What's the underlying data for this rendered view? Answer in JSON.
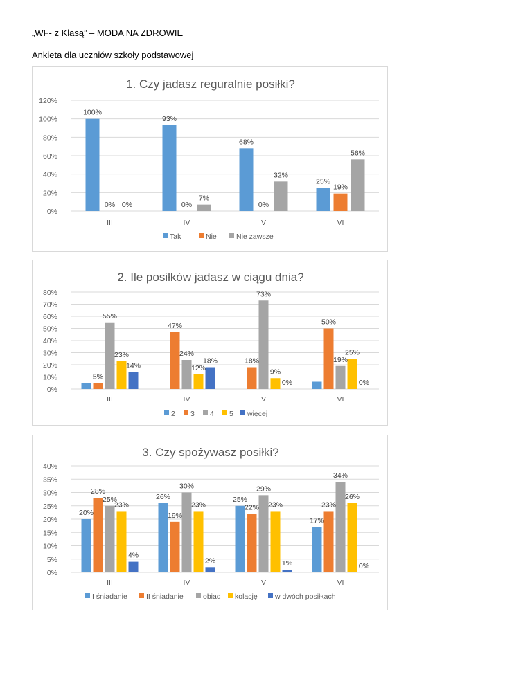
{
  "document": {
    "title": "„WF- z Klasą” – MODA NA ZDROWIE",
    "subtitle": "Ankieta dla uczniów szkoły podstawowej"
  },
  "chart_data": [
    {
      "type": "bar",
      "title": "1. Czy jadasz reguralnie posiłki?",
      "categories": [
        "III",
        "IV",
        "V",
        "VI"
      ],
      "ylim": [
        0,
        120
      ],
      "yticks": [
        0,
        20,
        40,
        60,
        80,
        100,
        120
      ],
      "series": [
        {
          "name": "Tak",
          "color": "#5b9bd5",
          "values": [
            100,
            93,
            68,
            25
          ]
        },
        {
          "name": "Nie",
          "color": "#ed7d31",
          "values": [
            0,
            0,
            0,
            19
          ]
        },
        {
          "name": "Nie zawsze",
          "color": "#a5a5a5",
          "values": [
            0,
            7,
            32,
            56
          ]
        }
      ],
      "legend": "bottom",
      "xlabel": "",
      "ylabel": ""
    },
    {
      "type": "bar",
      "title": "2. Ile posiłków jadasz w ciągu dnia?",
      "categories": [
        "III",
        "IV",
        "V",
        "VI"
      ],
      "ylim": [
        0,
        80
      ],
      "yticks": [
        0,
        10,
        20,
        30,
        40,
        50,
        60,
        70,
        80
      ],
      "series": [
        {
          "name": "2",
          "color": "#5b9bd5",
          "values": [
            5,
            0,
            0,
            6
          ],
          "labels": [
            null,
            null,
            null,
            null
          ]
        },
        {
          "name": "3",
          "color": "#ed7d31",
          "values": [
            5,
            47,
            18,
            50
          ],
          "labels": [
            "5%",
            "47%",
            "18%",
            "50%"
          ]
        },
        {
          "name": "4",
          "color": "#a5a5a5",
          "values": [
            55,
            24,
            73,
            19
          ],
          "labels": [
            "55%",
            "24%",
            "73%",
            "19%"
          ]
        },
        {
          "name": "5",
          "color": "#ffc000",
          "values": [
            23,
            12,
            9,
            25
          ],
          "labels": [
            "23%",
            "12%",
            "9%",
            "25%"
          ]
        },
        {
          "name": "więcej",
          "color": "#4472c4",
          "values": [
            14,
            18,
            0,
            0
          ],
          "labels": [
            "14%",
            "18%",
            "0%",
            "0%"
          ]
        }
      ],
      "legend": "bottom",
      "xlabel": "",
      "ylabel": ""
    },
    {
      "type": "bar",
      "title": "3. Czy spożywasz posiłki?",
      "categories": [
        "III",
        "IV",
        "V",
        "VI"
      ],
      "ylim": [
        0,
        40
      ],
      "yticks": [
        0,
        5,
        10,
        15,
        20,
        25,
        30,
        35,
        40
      ],
      "series": [
        {
          "name": "I śniadanie",
          "color": "#5b9bd5",
          "values": [
            20,
            26,
            25,
            17
          ]
        },
        {
          "name": "II śniadanie",
          "color": "#ed7d31",
          "values": [
            28,
            19,
            22,
            23
          ]
        },
        {
          "name": "obiad",
          "color": "#a5a5a5",
          "values": [
            25,
            30,
            29,
            34
          ]
        },
        {
          "name": "kolację",
          "color": "#ffc000",
          "values": [
            23,
            23,
            23,
            26
          ]
        },
        {
          "name": "w dwóch posiłkach",
          "color": "#4472c4",
          "values": [
            4,
            2,
            1,
            0
          ]
        }
      ],
      "legend": "bottom",
      "xlabel": "",
      "ylabel": ""
    }
  ]
}
